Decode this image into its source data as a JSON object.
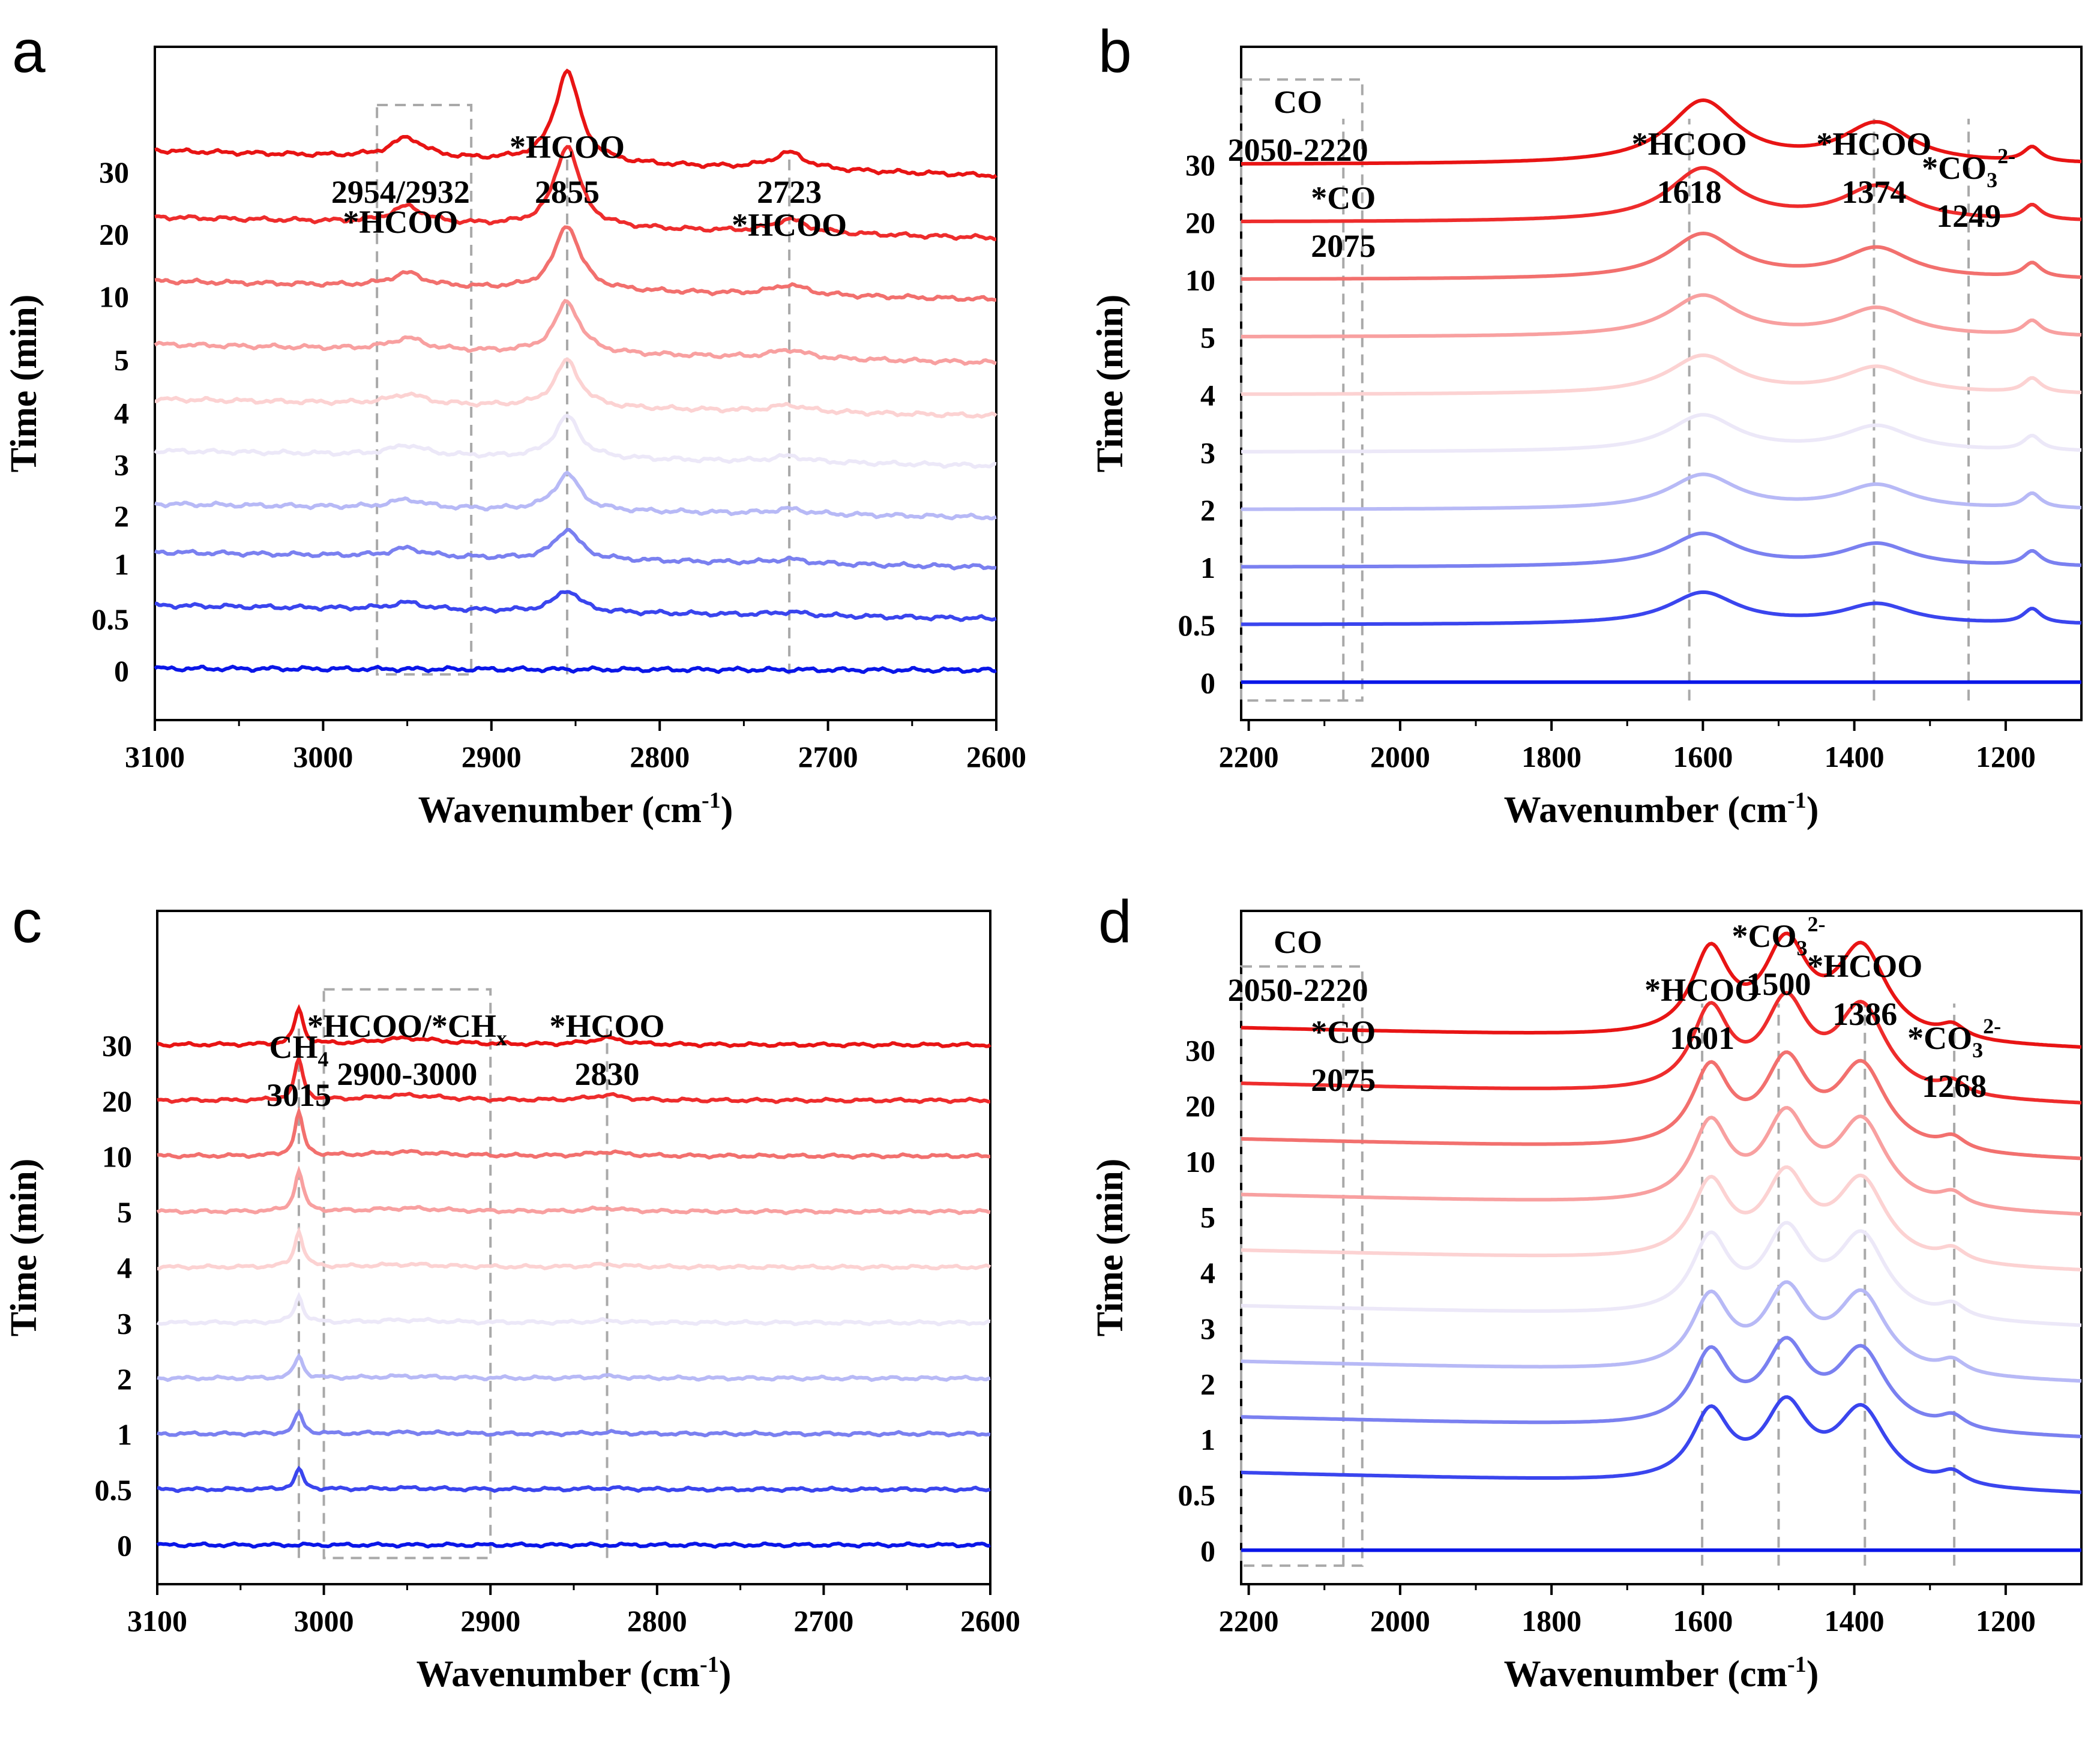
{
  "figure": {
    "series_colors": [
      "#0a16e8",
      "#3a45ee",
      "#7a80f0",
      "#b7b9f6",
      "#ece8f8",
      "#fcd2d2",
      "#f8a0a0",
      "#f2706e",
      "#ee2c2c",
      "#e81414"
    ],
    "guide_color": "#a9a9a9"
  },
  "chart_data": [
    {
      "panel": "a",
      "type": "line",
      "xlabel": "Wavenumber (cm",
      "xlabel_sup": "-1",
      "xlabel_close": ")",
      "ylabel": "Time (min)",
      "xlim": [
        3100,
        2600
      ],
      "x_ticks": [
        3100,
        3000,
        2900,
        2800,
        2700,
        2600
      ],
      "time_labels": [
        "0",
        "0.5",
        "1",
        "2",
        "3",
        "4",
        "5",
        "10",
        "20",
        "30"
      ],
      "series": [
        {
          "name": "0",
          "baseline": 0.1,
          "start": 0.12,
          "end": 0.1
        },
        {
          "name": "0.5",
          "baseline": 0.72,
          "start": 0.88,
          "end": 0.72
        },
        {
          "name": "1",
          "baseline": 1.38,
          "start": 1.52,
          "end": 1.34
        },
        {
          "name": "2",
          "baseline": 1.96,
          "start": 2.1,
          "end": 1.94
        },
        {
          "name": "3",
          "baseline": 2.58,
          "start": 2.74,
          "end": 2.56
        },
        {
          "name": "4",
          "baseline": 3.2,
          "start": 3.36,
          "end": 3.16
        },
        {
          "name": "5",
          "baseline": 3.84,
          "start": 4.02,
          "end": 3.8
        },
        {
          "name": "10",
          "baseline": 4.6,
          "start": 4.78,
          "end": 4.56
        },
        {
          "name": "20",
          "baseline": 5.35,
          "start": 5.55,
          "end": 5.3
        },
        {
          "name": "30",
          "baseline": 6.1,
          "start": 6.35,
          "end": 6.05
        }
      ],
      "peaks": [
        {
          "x": 2855,
          "width": 9,
          "heights": [
            0,
            0.26,
            0.36,
            0.44,
            0.5,
            0.56,
            0.62,
            0.78,
            0.98,
            1.1
          ]
        },
        {
          "x": 2950,
          "width": 12,
          "heights": [
            0,
            0.08,
            0.1,
            0.1,
            0.12,
            0.12,
            0.14,
            0.16,
            0.2,
            0.24
          ]
        },
        {
          "x": 2723,
          "width": 12,
          "heights": [
            0,
            0.04,
            0.05,
            0.06,
            0.07,
            0.08,
            0.1,
            0.12,
            0.16,
            0.2
          ]
        }
      ],
      "annotations": [
        {
          "lines": [
            "*HCOO",
            "2954/2932"
          ],
          "x": 2954
        },
        {
          "lines": [
            "*HCOO",
            "2855"
          ],
          "x": 2855
        },
        {
          "lines": [
            "*HCOO",
            "2723"
          ],
          "x": 2723
        }
      ]
    },
    {
      "panel": "b",
      "type": "line",
      "xlabel": "Wavenumber (cm",
      "xlabel_sup": "-1",
      "xlabel_close": ")",
      "ylabel": "Time (min)",
      "xlim": [
        2210,
        1100
      ],
      "x_ticks": [
        2200,
        2000,
        1800,
        1600,
        1400,
        1200
      ],
      "time_labels": [
        "0",
        "0.5",
        "1",
        "2",
        "3",
        "4",
        "5",
        "10",
        "20",
        "30"
      ],
      "series": [
        {
          "name": "0",
          "baseline": 0.08,
          "start": 0.08,
          "end": 0.08
        },
        {
          "name": "0.5",
          "baseline": 0.96,
          "start": 0.96,
          "end": 0.96
        },
        {
          "name": "1",
          "baseline": 1.84,
          "start": 1.84,
          "end": 1.84
        },
        {
          "name": "2",
          "baseline": 2.72,
          "start": 2.72,
          "end": 2.72
        },
        {
          "name": "3",
          "baseline": 3.6,
          "start": 3.6,
          "end": 3.6
        },
        {
          "name": "4",
          "baseline": 4.48,
          "start": 4.48,
          "end": 4.48
        },
        {
          "name": "5",
          "baseline": 5.36,
          "start": 5.36,
          "end": 5.36
        },
        {
          "name": "10",
          "baseline": 6.24,
          "start": 6.24,
          "end": 6.24
        },
        {
          "name": "20",
          "baseline": 7.12,
          "start": 7.12,
          "end": 7.12
        },
        {
          "name": "30",
          "baseline": 8.0,
          "start": 8.0,
          "end": 8.0
        }
      ],
      "peaks": [
        {
          "x": 1600,
          "width": 55,
          "heights": [
            0,
            0.48,
            0.5,
            0.52,
            0.55,
            0.58,
            0.62,
            0.68,
            0.8,
            0.95
          ]
        },
        {
          "x": 1370,
          "width": 55,
          "heights": [
            0,
            0.3,
            0.34,
            0.36,
            0.38,
            0.4,
            0.42,
            0.46,
            0.52,
            0.6
          ]
        },
        {
          "x": 1165,
          "width": 14,
          "heights": [
            0,
            0.22,
            0.22,
            0.22,
            0.22,
            0.22,
            0.22,
            0.22,
            0.22,
            0.22
          ]
        }
      ],
      "annotations": [
        {
          "lines": [
            "CO",
            "2050-2220"
          ],
          "x": 2135
        },
        {
          "lines": [
            "*CO",
            "2075"
          ],
          "x": 2075
        },
        {
          "lines": [
            "*HCOO",
            "1618"
          ],
          "x": 1618
        },
        {
          "lines": [
            "*HCOO",
            "1374"
          ],
          "x": 1374
        },
        {
          "lines": [
            "*CO",
            "1249"
          ],
          "x": 1249,
          "sub": "3",
          "sup": "2-"
        }
      ]
    },
    {
      "panel": "c",
      "type": "line",
      "xlabel": "Wavenumber (cm",
      "xlabel_sup": "-1",
      "xlabel_close": ")",
      "ylabel": "Time (min)",
      "xlim": [
        3100,
        2600
      ],
      "x_ticks": [
        3100,
        3000,
        2900,
        2800,
        2700,
        2600
      ],
      "time_labels": [
        "0",
        "0.5",
        "1",
        "2",
        "3",
        "4",
        "5",
        "10",
        "20",
        "30"
      ],
      "series": [
        {
          "name": "0",
          "baseline": 0.1,
          "start": 0.1,
          "end": 0.1
        },
        {
          "name": "0.5",
          "baseline": 0.95,
          "start": 0.95,
          "end": 0.95
        },
        {
          "name": "1",
          "baseline": 1.8,
          "start": 1.8,
          "end": 1.8
        },
        {
          "name": "2",
          "baseline": 2.65,
          "start": 2.65,
          "end": 2.65
        },
        {
          "name": "3",
          "baseline": 3.5,
          "start": 3.5,
          "end": 3.5
        },
        {
          "name": "4",
          "baseline": 4.35,
          "start": 4.35,
          "end": 4.35
        },
        {
          "name": "5",
          "baseline": 5.2,
          "start": 5.2,
          "end": 5.2
        },
        {
          "name": "10",
          "baseline": 6.05,
          "start": 6.05,
          "end": 6.05
        },
        {
          "name": "20",
          "baseline": 6.9,
          "start": 6.9,
          "end": 6.9
        },
        {
          "name": "30",
          "baseline": 7.75,
          "start": 7.75,
          "end": 7.75
        }
      ],
      "peaks": [
        {
          "x": 3015,
          "width": 3,
          "heights": [
            0,
            0.3,
            0.32,
            0.34,
            0.4,
            0.55,
            0.62,
            0.65,
            0.62,
            0.55
          ]
        },
        {
          "x": 2950,
          "width": 25,
          "heights": [
            0,
            0.02,
            0.02,
            0.03,
            0.04,
            0.04,
            0.05,
            0.06,
            0.08,
            0.1
          ]
        },
        {
          "x": 2830,
          "width": 12,
          "heights": [
            0,
            0.02,
            0.02,
            0.03,
            0.03,
            0.04,
            0.05,
            0.06,
            0.08,
            0.1
          ]
        }
      ],
      "annotations": [
        {
          "lines": [
            "CH",
            "3015"
          ],
          "x": 3015,
          "sub": "4"
        },
        {
          "lines": [
            "*HCOO/*CH",
            "2900-3000"
          ],
          "x": 2950,
          "sub": "x"
        },
        {
          "lines": [
            "*HCOO",
            "2830"
          ],
          "x": 2830
        }
      ]
    },
    {
      "panel": "d",
      "type": "line",
      "xlabel": "Wavenumber (cm",
      "xlabel_sup": "-1",
      "xlabel_close": ")",
      "ylabel": "Time (min)",
      "xlim": [
        2210,
        1100
      ],
      "x_ticks": [
        2200,
        2000,
        1800,
        1600,
        1400,
        1200
      ],
      "time_labels": [
        "0",
        "0.5",
        "1",
        "2",
        "3",
        "4",
        "5",
        "10",
        "20",
        "30"
      ],
      "series": [
        {
          "name": "0",
          "baseline": 0.05,
          "start": 0.05,
          "end": 0.05
        },
        {
          "name": "0.5",
          "baseline": 0.95,
          "start": 1.3,
          "end": 0.95
        },
        {
          "name": "1",
          "baseline": 1.85,
          "start": 2.2,
          "end": 1.85
        },
        {
          "name": "2",
          "baseline": 2.75,
          "start": 3.1,
          "end": 2.75
        },
        {
          "name": "3",
          "baseline": 3.65,
          "start": 4.0,
          "end": 3.65
        },
        {
          "name": "4",
          "baseline": 4.55,
          "start": 4.9,
          "end": 4.55
        },
        {
          "name": "5",
          "baseline": 5.45,
          "start": 5.8,
          "end": 5.45
        },
        {
          "name": "10",
          "baseline": 6.35,
          "start": 6.7,
          "end": 6.35
        },
        {
          "name": "20",
          "baseline": 7.25,
          "start": 7.6,
          "end": 7.25
        },
        {
          "name": "30",
          "baseline": 8.15,
          "start": 8.5,
          "end": 8.15
        }
      ],
      "peaks": [
        {
          "x": 1590,
          "width": 30,
          "heights": [
            0,
            1.1,
            1.15,
            1.15,
            1.2,
            1.2,
            1.25,
            1.25,
            1.3,
            1.35
          ]
        },
        {
          "x": 1490,
          "width": 35,
          "heights": [
            0,
            1.2,
            1.25,
            1.25,
            1.3,
            1.3,
            1.35,
            1.35,
            1.4,
            1.45
          ]
        },
        {
          "x": 1390,
          "width": 40,
          "heights": [
            0,
            1.2,
            1.25,
            1.25,
            1.3,
            1.3,
            1.35,
            1.35,
            1.4,
            1.45
          ]
        },
        {
          "x": 1270,
          "width": 20,
          "heights": [
            0,
            0.2,
            0.2,
            0.2,
            0.2,
            0.2,
            0.2,
            0.2,
            0.2,
            0.2
          ]
        }
      ],
      "annotations": [
        {
          "lines": [
            "CO",
            "2050-2220"
          ],
          "x": 2135
        },
        {
          "lines": [
            "*CO",
            "2075"
          ],
          "x": 2075
        },
        {
          "lines": [
            "*HCOO",
            "1601"
          ],
          "x": 1601
        },
        {
          "lines": [
            "*CO",
            "1500"
          ],
          "x": 1500,
          "sub": "3",
          "sup": "2-"
        },
        {
          "lines": [
            "*HCOO",
            "1386"
          ],
          "x": 1386
        },
        {
          "lines": [
            "*CO",
            "1268"
          ],
          "x": 1268,
          "sub": "3",
          "sup": "2-"
        }
      ]
    }
  ]
}
